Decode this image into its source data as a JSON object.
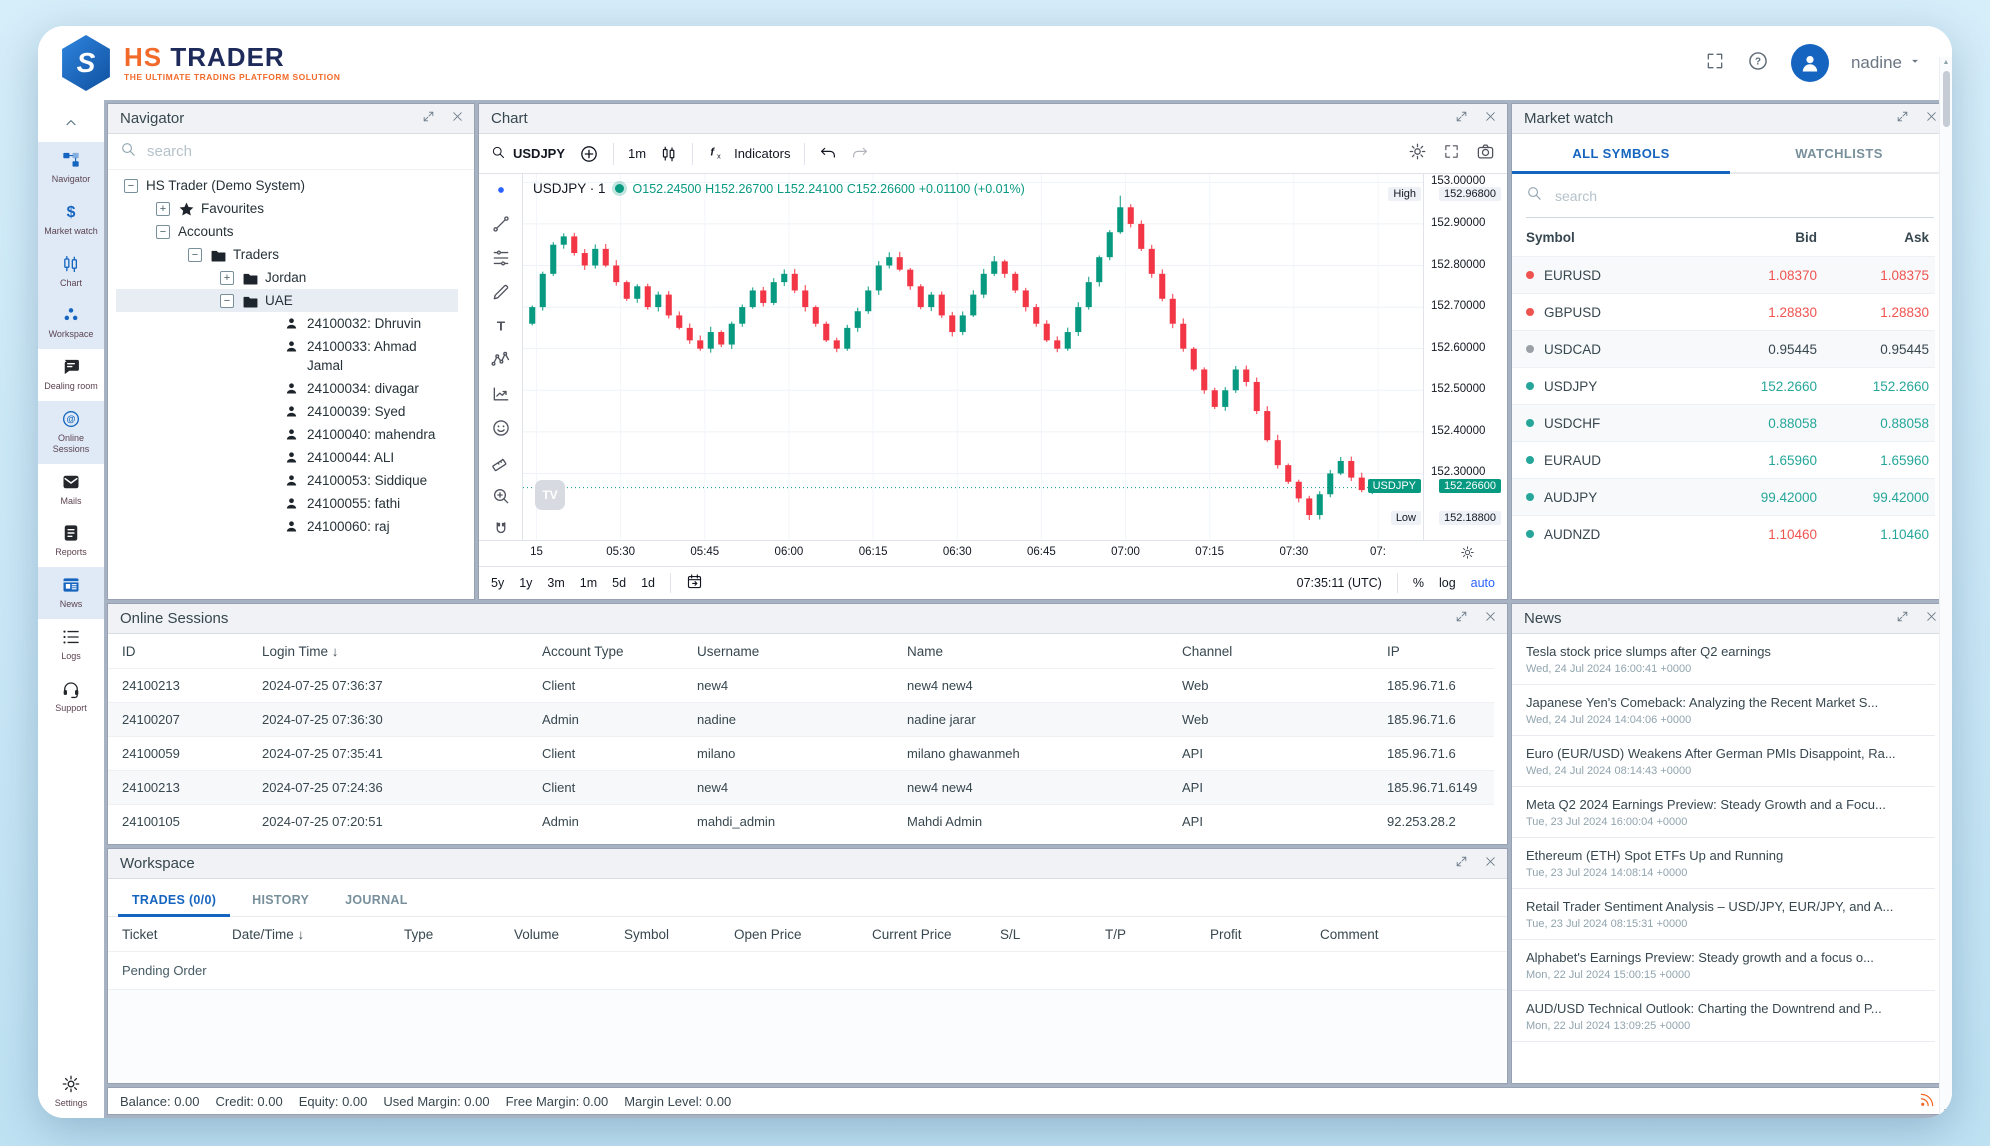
{
  "header": {
    "brand_hs": "HS",
    "brand_trader": "TRADER",
    "tagline": "THE ULTIMATE TRADING PLATFORM SOLUTION",
    "user": "nadine"
  },
  "sidebar": {
    "items": [
      {
        "label": "Navigator",
        "icon": "navigator",
        "active": true,
        "blue": true
      },
      {
        "label": "Market watch",
        "icon": "dollar",
        "active": true,
        "blue": true
      },
      {
        "label": "Chart",
        "icon": "candles",
        "active": true,
        "blue": true
      },
      {
        "label": "Workspace",
        "icon": "dots",
        "active": true,
        "blue": true
      },
      {
        "label": "Dealing room",
        "icon": "chat",
        "active": false,
        "blue": false
      },
      {
        "label": "Online Sessions",
        "icon": "at",
        "active": true,
        "blue": true
      },
      {
        "label": "Mails",
        "icon": "mail",
        "active": false,
        "blue": false
      },
      {
        "label": "Reports",
        "icon": "report",
        "active": false,
        "blue": false
      },
      {
        "label": "News",
        "icon": "news",
        "active": true,
        "blue": true
      },
      {
        "label": "Logs",
        "icon": "list",
        "active": false,
        "blue": false
      },
      {
        "label": "Support",
        "icon": "headset",
        "active": false,
        "blue": false
      }
    ],
    "settings_label": "Settings"
  },
  "navigator": {
    "title": "Navigator",
    "search_placeholder": "search",
    "tree": [
      {
        "level": 0,
        "expander": "-",
        "icon": "",
        "label": "HS Trader (Demo System)"
      },
      {
        "level": 1,
        "expander": "+",
        "icon": "star",
        "label": "Favourites"
      },
      {
        "level": 1,
        "expander": "-",
        "icon": "",
        "label": "Accounts"
      },
      {
        "level": 2,
        "expander": "-",
        "icon": "folder",
        "label": "Traders"
      },
      {
        "level": 3,
        "expander": "+",
        "icon": "folder",
        "label": "Jordan"
      },
      {
        "level": 3,
        "expander": "-",
        "icon": "folder",
        "label": "UAE",
        "selected": true
      },
      {
        "level": 4,
        "expander": "",
        "icon": "user",
        "label": "24100032: Dhruvin"
      },
      {
        "level": 4,
        "expander": "",
        "icon": "user",
        "label": "24100033: Ahmad Jamal"
      },
      {
        "level": 4,
        "expander": "",
        "icon": "user",
        "label": "24100034: divagar"
      },
      {
        "level": 4,
        "expander": "",
        "icon": "user",
        "label": "24100039: Syed"
      },
      {
        "level": 4,
        "expander": "",
        "icon": "user",
        "label": "24100040: mahendra"
      },
      {
        "level": 4,
        "expander": "",
        "icon": "user",
        "label": "24100044: ALI"
      },
      {
        "level": 4,
        "expander": "",
        "icon": "user",
        "label": "24100053: Siddique"
      },
      {
        "level": 4,
        "expander": "",
        "icon": "user",
        "label": "24100055: fathi"
      },
      {
        "level": 4,
        "expander": "",
        "icon": "user",
        "label": "24100060: raj"
      }
    ]
  },
  "chart": {
    "title": "Chart",
    "toolbar": {
      "symbol": "USDJPY",
      "interval": "1m",
      "indicators": "Indicators"
    },
    "bottom": {
      "ranges": [
        "5y",
        "1y",
        "3m",
        "1m",
        "5d",
        "1d"
      ],
      "time": "07:35:11 (UTC)",
      "percent": "%",
      "log": "log",
      "auto": "auto"
    },
    "drawing_tools": [
      "cursor",
      "trendline",
      "fib",
      "brush",
      "text",
      "pattern",
      "forecast",
      "emoji",
      "measure",
      "zoomin",
      "magnet"
    ]
  },
  "chart_data": {
    "type": "candlestick",
    "symbol": "USDJPY",
    "interval": "1m",
    "title": "USDJPY · 1",
    "legend_items": [
      "O152.24500",
      "H152.26700",
      "L152.24100",
      "C152.26600",
      "+0.01100 (+0.01%)"
    ],
    "y_ticks": [
      "153.00000",
      "152.90000",
      "152.80000",
      "152.70000",
      "152.60000",
      "152.50000",
      "152.40000",
      "152.30000"
    ],
    "x_ticks": [
      "15",
      "05:30",
      "05:45",
      "06:00",
      "06:15",
      "06:30",
      "06:45",
      "07:00",
      "07:15",
      "07:30",
      "07:"
    ],
    "ylim": [
      152.14,
      153.02
    ],
    "session_high": 152.968,
    "session_low": 152.188,
    "last_price": 152.266,
    "badges": {
      "high_label": "High",
      "high_value": "152.96800",
      "low_label": "Low",
      "low_value": "152.18800",
      "symbol_label": "USDJPY",
      "last_value": "152.26600"
    },
    "up_color": "#089981",
    "down_color": "#f23645",
    "first_open": 152.66,
    "spike_index": 56,
    "low_index": 74,
    "closes": [
      152.7,
      152.78,
      152.85,
      152.87,
      152.83,
      152.8,
      152.84,
      152.8,
      152.76,
      152.72,
      152.75,
      152.7,
      152.73,
      152.68,
      152.65,
      152.62,
      152.6,
      152.64,
      152.61,
      152.66,
      152.7,
      152.74,
      152.71,
      152.76,
      152.78,
      152.74,
      152.7,
      152.66,
      152.62,
      152.6,
      152.65,
      152.69,
      152.74,
      152.8,
      152.82,
      152.79,
      152.75,
      152.7,
      152.73,
      152.68,
      152.64,
      152.68,
      152.73,
      152.78,
      152.81,
      152.78,
      152.74,
      152.7,
      152.66,
      152.62,
      152.6,
      152.64,
      152.7,
      152.76,
      152.82,
      152.88,
      152.94,
      152.9,
      152.84,
      152.78,
      152.72,
      152.66,
      152.6,
      152.55,
      152.5,
      152.46,
      152.5,
      152.55,
      152.52,
      152.45,
      152.38,
      152.32,
      152.28,
      152.24,
      152.2,
      152.25,
      152.3,
      152.33,
      152.29,
      152.26,
      152.266
    ]
  },
  "market_watch": {
    "title": "Market watch",
    "tabs": [
      {
        "label": "ALL SYMBOLS",
        "active": true
      },
      {
        "label": "WATCHLISTS",
        "active": false
      }
    ],
    "search_placeholder": "search",
    "columns": [
      "Symbol",
      "Bid",
      "Ask"
    ],
    "rows": [
      {
        "symbol": "EURUSD",
        "dot": "red",
        "bid": "1.08370",
        "ask": "1.08375",
        "bid_color": "red",
        "ask_color": "red"
      },
      {
        "symbol": "GBPUSD",
        "dot": "red",
        "bid": "1.28830",
        "ask": "1.28830",
        "bid_color": "red",
        "ask_color": "red"
      },
      {
        "symbol": "USDCAD",
        "dot": "gray",
        "bid": "0.95445",
        "ask": "0.95445",
        "bid_color": "neutral",
        "ask_color": "neutral"
      },
      {
        "symbol": "USDJPY",
        "dot": "green",
        "bid": "152.2660",
        "ask": "152.2660",
        "bid_color": "green",
        "ask_color": "green"
      },
      {
        "symbol": "USDCHF",
        "dot": "green",
        "bid": "0.88058",
        "ask": "0.88058",
        "bid_color": "green",
        "ask_color": "green"
      },
      {
        "symbol": "EURAUD",
        "dot": "green",
        "bid": "1.65960",
        "ask": "1.65960",
        "bid_color": "green",
        "ask_color": "green"
      },
      {
        "symbol": "AUDJPY",
        "dot": "green",
        "bid": "99.42000",
        "ask": "99.42000",
        "bid_color": "green",
        "ask_color": "green"
      },
      {
        "symbol": "AUDNZD",
        "dot": "green",
        "bid": "1.10460",
        "ask": "1.10460",
        "bid_color": "red",
        "ask_color": "green"
      }
    ]
  },
  "sessions": {
    "title": "Online Sessions",
    "columns": [
      "ID",
      "Login Time",
      "Account Type",
      "Username",
      "Name",
      "Channel",
      "IP"
    ],
    "sorted_column": "Login Time",
    "rows": [
      [
        "24100213",
        "2024-07-25 07:36:37",
        "Client",
        "new4",
        "new4 new4",
        "Web",
        "185.96.71.6"
      ],
      [
        "24100207",
        "2024-07-25 07:36:30",
        "Admin",
        "nadine",
        "nadine jarar",
        "Web",
        "185.96.71.6"
      ],
      [
        "24100059",
        "2024-07-25 07:35:41",
        "Client",
        "milano",
        "milano ghawanmeh",
        "API",
        "185.96.71.6"
      ],
      [
        "24100213",
        "2024-07-25 07:24:36",
        "Client",
        "new4",
        "new4 new4",
        "API",
        "185.96.71.6149"
      ],
      [
        "24100105",
        "2024-07-25 07:20:51",
        "Admin",
        "mahdi_admin",
        "Mahdi Admin",
        "API",
        "92.253.28.2"
      ]
    ]
  },
  "workspace": {
    "title": "Workspace",
    "tabs": [
      {
        "label": "TRADES (0/0)",
        "active": true
      },
      {
        "label": "HISTORY",
        "active": false
      },
      {
        "label": "JOURNAL",
        "active": false
      }
    ],
    "columns": [
      "Ticket",
      "Date/Time",
      "Type",
      "Volume",
      "Symbol",
      "Open Price",
      "Current Price",
      "S/L",
      "T/P",
      "Profit",
      "Comment"
    ],
    "sorted_column": "Date/Time",
    "pending_label": "Pending Order"
  },
  "news": {
    "title": "News",
    "items": [
      {
        "title": "Tesla stock price slumps after Q2 earnings",
        "date": "Wed, 24 Jul 2024 16:00:41 +0000"
      },
      {
        "title": "Japanese Yen's Comeback: Analyzing the Recent Market S...",
        "date": "Wed, 24 Jul 2024 14:04:06 +0000"
      },
      {
        "title": "Euro (EUR/USD) Weakens After German PMIs Disappoint, Ra...",
        "date": "Wed, 24 Jul 2024 08:14:43 +0000"
      },
      {
        "title": "Meta Q2 2024 Earnings Preview: Steady Growth and a Focu...",
        "date": "Tue, 23 Jul 2024 16:00:04 +0000"
      },
      {
        "title": "Ethereum (ETH) Spot ETFs Up and Running",
        "date": "Tue, 23 Jul 2024 14:08:14 +0000"
      },
      {
        "title": "Retail Trader Sentiment Analysis – USD/JPY, EUR/JPY, and A...",
        "date": "Tue, 23 Jul 2024 08:15:31 +0000"
      },
      {
        "title": "Alphabet's Earnings Preview: Steady growth and a focus o...",
        "date": "Mon, 22 Jul 2024 15:00:15 +0000"
      },
      {
        "title": "AUD/USD Technical Outlook: Charting the Downtrend and P...",
        "date": "Mon, 22 Jul 2024 13:09:25 +0000"
      }
    ]
  },
  "status_bar": {
    "items": [
      "Balance: 0.00",
      "Credit: 0.00",
      "Equity: 0.00",
      "Used Margin: 0.00",
      "Free Margin: 0.00",
      "Margin Level: 0.00"
    ]
  }
}
